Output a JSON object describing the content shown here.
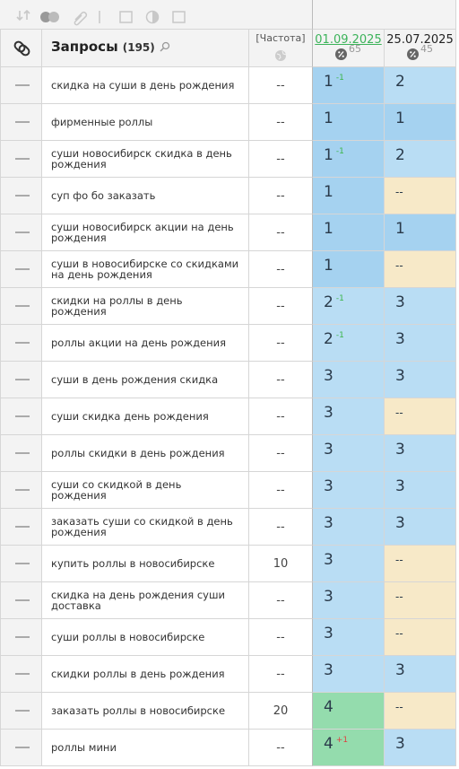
{
  "header": {
    "query_title": "Запросы",
    "query_count": "(195)",
    "frequency": "[Частота]",
    "date1": "01.09.2025",
    "date1_count": "65",
    "date2": "25.07.2025",
    "date2_count": "45"
  },
  "rows": [
    {
      "query": "скидка на суши в день рождения",
      "frequency": "--",
      "pos1": "1",
      "change": "-1",
      "pos2": "2"
    },
    {
      "query": "фирменные роллы",
      "frequency": "--",
      "pos1": "1",
      "pos2": "1"
    },
    {
      "query": "суши новосибирск скидка в день рождения",
      "frequency": "--",
      "pos1": "1",
      "change": "-1",
      "pos2": "2"
    },
    {
      "query": "суп фо бо заказать",
      "frequency": "--",
      "pos1": "1",
      "pos2": "--"
    },
    {
      "query": "суши новосибирск акции на день рождения",
      "frequency": "--",
      "pos1": "1",
      "pos2": "1"
    },
    {
      "query": "суши в новосибирске со скидками на день рождения",
      "frequency": "--",
      "pos1": "1",
      "pos2": "--"
    },
    {
      "query": "скидки на роллы в день рождения",
      "frequency": "--",
      "pos1": "2",
      "change": "-1",
      "pos2": "3"
    },
    {
      "query": "роллы акции на день рождения",
      "frequency": "--",
      "pos1": "2",
      "change": "-1",
      "pos2": "3"
    },
    {
      "query": "суши в день рождения скидка",
      "frequency": "--",
      "pos1": "3",
      "pos2": "3"
    },
    {
      "query": "суши скидка день рождения",
      "frequency": "--",
      "pos1": "3",
      "pos2": "--"
    },
    {
      "query": "роллы скидки в день рождения",
      "frequency": "--",
      "pos1": "3",
      "pos2": "3"
    },
    {
      "query": "суши со скидкой в день рождения",
      "frequency": "--",
      "pos1": "3",
      "pos2": "3"
    },
    {
      "query": "заказать суши со скидкой в день рождения",
      "frequency": "--",
      "pos1": "3",
      "pos2": "3"
    },
    {
      "query": "купить роллы в новосибирске",
      "frequency": "10",
      "pos1": "3",
      "pos2": "--"
    },
    {
      "query": "скидка на день рождения суши доставка",
      "frequency": "--",
      "pos1": "3",
      "pos2": "--"
    },
    {
      "query": "суши роллы в новосибирске",
      "frequency": "--",
      "pos1": "3",
      "pos2": "--"
    },
    {
      "query": "скидки роллы в день рождения",
      "frequency": "--",
      "pos1": "3",
      "pos2": "3"
    },
    {
      "query": "заказать роллы в новосибирске",
      "frequency": "20",
      "pos1": "4",
      "pos2": "--"
    },
    {
      "query": "роллы мини",
      "frequency": "--",
      "pos1": "4",
      "change": "+1",
      "pos2": "3"
    }
  ]
}
